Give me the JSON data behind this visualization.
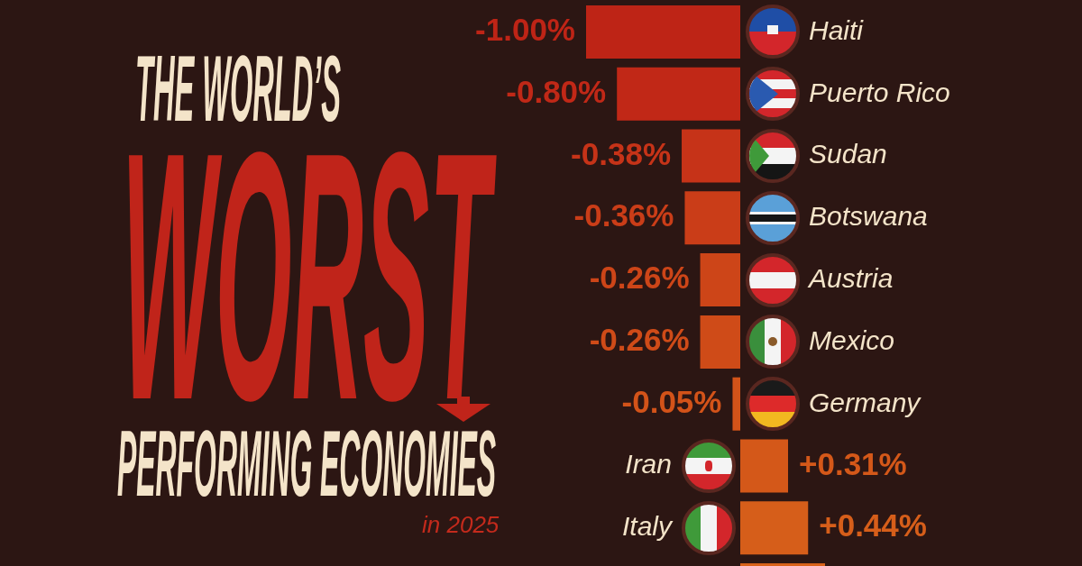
{
  "chart_data": {
    "type": "bar",
    "orientation": "horizontal",
    "title": "THE WORLD’S\nWORST\nPERFORMING ECONOMIES",
    "subtitle": "in 2025",
    "categories": [
      "Haiti",
      "Puerto Rico",
      "Sudan",
      "Botswana",
      "Austria",
      "Mexico",
      "Germany",
      "Iran",
      "Italy",
      null
    ],
    "values": [
      -1.0,
      -0.8,
      -0.38,
      -0.36,
      -0.26,
      -0.26,
      -0.05,
      0.31,
      0.44,
      0.55
    ],
    "colors": [
      "#be2416",
      "#c12817",
      "#c63318",
      "#ca3d18",
      "#cd4518",
      "#cf4b18",
      "#d35319",
      "#d45819",
      "#d65e1a",
      "#d8621a"
    ],
    "value_labels": [
      "-1.00%",
      "-0.80%",
      "-0.38%",
      "-0.36%",
      "-0.26%",
      "-0.26%",
      "-0.05%",
      "+0.31%",
      "+0.44%",
      null
    ],
    "tick_labels": "y"
  }
}
